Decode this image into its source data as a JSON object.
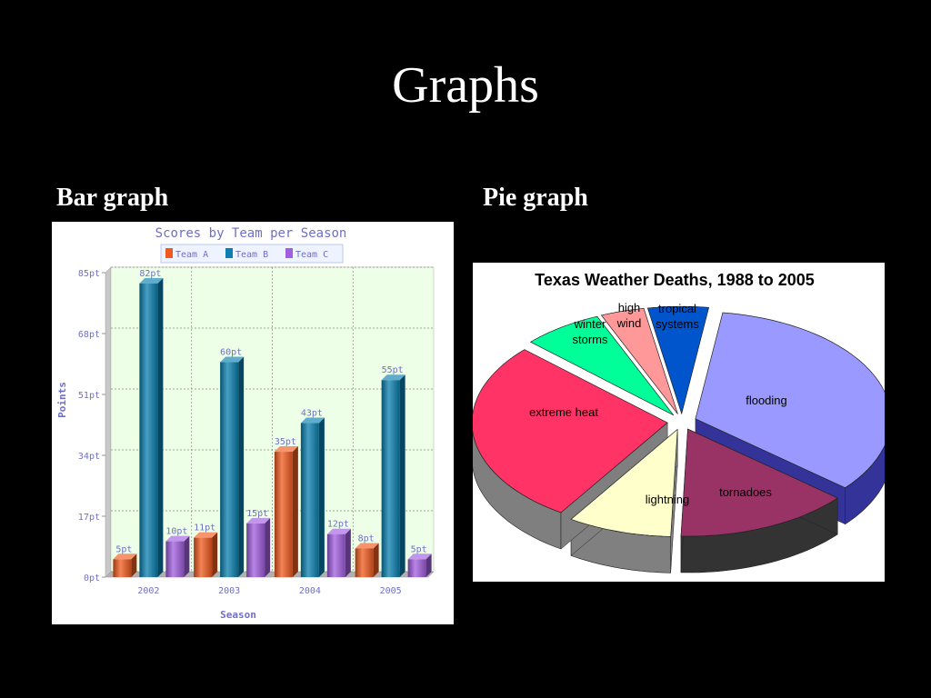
{
  "slide": {
    "title": "Graphs",
    "bar_caption": "Bar graph",
    "pie_caption": "Pie graph"
  },
  "chart_data": [
    {
      "type": "bar",
      "title": "Scores by Team per Season",
      "xlabel": "Season",
      "ylabel": "Points",
      "categories": [
        "2002",
        "2003",
        "2004",
        "2005"
      ],
      "y_ticks": [
        "0pt",
        "17pt",
        "34pt",
        "51pt",
        "68pt",
        "85pt"
      ],
      "ylim": [
        0,
        85
      ],
      "grid": true,
      "legend_position": "top-center",
      "series": [
        {
          "name": "Team A",
          "color": "#f05a1e",
          "values": [
            5,
            11,
            35,
            8
          ],
          "labels": [
            "5pt",
            "11pt",
            "35pt",
            "8pt"
          ]
        },
        {
          "name": "Team B",
          "color": "#0a7fb0",
          "values": [
            82,
            60,
            43,
            55
          ],
          "labels": [
            "82pt",
            "60pt",
            "43pt",
            "55pt"
          ]
        },
        {
          "name": "Team C",
          "color": "#a15ee0",
          "values": [
            10,
            15,
            12,
            5
          ],
          "labels": [
            "10pt",
            "15pt",
            "12pt",
            "5pt"
          ]
        }
      ]
    },
    {
      "type": "pie",
      "title": "Texas Weather Deaths, 1988 to 2005",
      "slices": [
        {
          "label": "flooding",
          "color": "#9999ff",
          "side_color": "#333399",
          "start": 8,
          "end": 130
        },
        {
          "label": "tornadoes",
          "color": "#993366",
          "side_color": "#333333",
          "start": 130,
          "end": 182
        },
        {
          "label": "lightning",
          "color": "#ffffcc",
          "side_color": "#808080",
          "start": 182,
          "end": 213
        },
        {
          "label": "extreme heat",
          "color": "#ff3366",
          "side_color": "#7f7f7f",
          "start": 213,
          "end": 313
        },
        {
          "label": "winter storms",
          "color": "#00ff99",
          "side_color": "#00a060",
          "start": 313,
          "end": 337
        },
        {
          "label": "high wind",
          "color": "#ff9999",
          "side_color": "#a06060",
          "start": 337,
          "end": 350
        },
        {
          "label": "tropical systems",
          "color": "#0055cc",
          "side_color": "#003377",
          "start": 350,
          "end": 368
        }
      ]
    }
  ]
}
